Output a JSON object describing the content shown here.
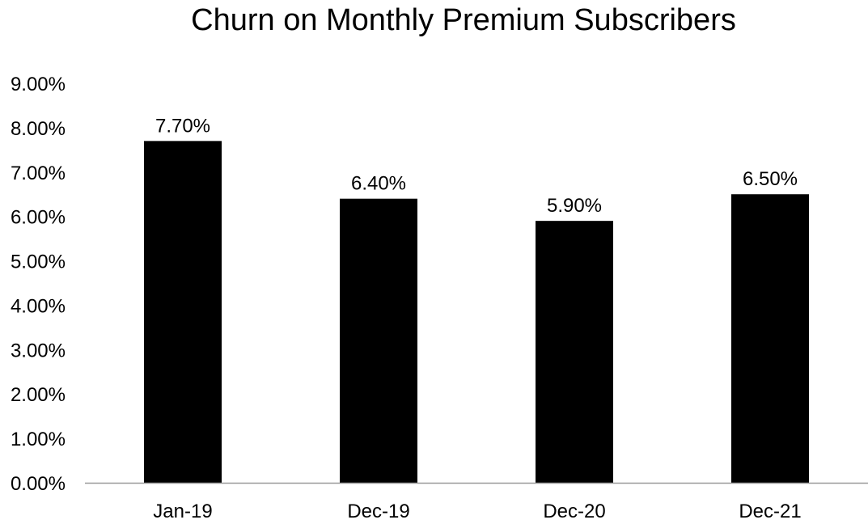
{
  "chart_data": {
    "type": "bar",
    "title": "Churn on Monthly Premium Subscribers",
    "xlabel": "",
    "ylabel": "",
    "categories": [
      "Jan-19",
      "Dec-19",
      "Dec-20",
      "Dec-21"
    ],
    "values": [
      7.7,
      6.4,
      5.9,
      6.5
    ],
    "value_labels": [
      "7.70%",
      "6.40%",
      "5.90%",
      "6.50%"
    ],
    "ylim": [
      0,
      9
    ],
    "yticks": [
      0,
      1,
      2,
      3,
      4,
      5,
      6,
      7,
      8,
      9
    ],
    "ytick_labels": [
      "0.00%",
      "1.00%",
      "2.00%",
      "3.00%",
      "4.00%",
      "5.00%",
      "6.00%",
      "7.00%",
      "8.00%",
      "9.00%"
    ],
    "grid": false,
    "legend": "none",
    "bar_color": "#000000",
    "axis_color": "#9a9a9a"
  }
}
